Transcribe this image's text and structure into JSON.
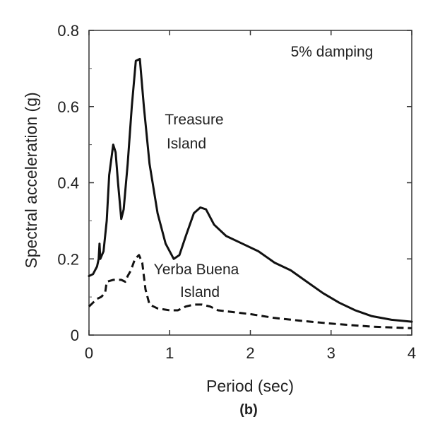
{
  "chart_data": {
    "type": "line",
    "title": "",
    "xlabel": "Period (sec)",
    "ylabel": "Spectral acceleration (g)",
    "xlim": [
      0,
      4
    ],
    "ylim": [
      0,
      0.8
    ],
    "x_ticks": [
      0,
      1,
      2,
      3,
      4
    ],
    "x_tick_labels": [
      "0",
      "1",
      "2",
      "3",
      "4"
    ],
    "y_ticks": [
      0,
      0.2,
      0.4,
      0.6,
      0.8
    ],
    "y_tick_labels": [
      "0",
      "0.2",
      "0.4",
      "0.6",
      "0.8"
    ],
    "grid": false,
    "annotations": {
      "damping": "5% damping",
      "caption": "(b)"
    },
    "series": [
      {
        "name": "Treasure Island",
        "label_lines": [
          "Treasure",
          "Island"
        ],
        "style": "solid",
        "color": "#111111",
        "points": [
          [
            0,
            0.155
          ],
          [
            0.05,
            0.16
          ],
          [
            0.1,
            0.18
          ],
          [
            0.12,
            0.2
          ],
          [
            0.13,
            0.24
          ],
          [
            0.14,
            0.2
          ],
          [
            0.18,
            0.22
          ],
          [
            0.22,
            0.3
          ],
          [
            0.25,
            0.42
          ],
          [
            0.3,
            0.5
          ],
          [
            0.33,
            0.48
          ],
          [
            0.36,
            0.4
          ],
          [
            0.4,
            0.305
          ],
          [
            0.43,
            0.33
          ],
          [
            0.48,
            0.45
          ],
          [
            0.53,
            0.6
          ],
          [
            0.58,
            0.72
          ],
          [
            0.63,
            0.725
          ],
          [
            0.68,
            0.6
          ],
          [
            0.75,
            0.45
          ],
          [
            0.85,
            0.32
          ],
          [
            0.95,
            0.24
          ],
          [
            1.05,
            0.2
          ],
          [
            1.12,
            0.21
          ],
          [
            1.2,
            0.26
          ],
          [
            1.3,
            0.32
          ],
          [
            1.38,
            0.335
          ],
          [
            1.45,
            0.33
          ],
          [
            1.55,
            0.29
          ],
          [
            1.7,
            0.26
          ],
          [
            1.9,
            0.24
          ],
          [
            2.1,
            0.22
          ],
          [
            2.3,
            0.19
          ],
          [
            2.5,
            0.17
          ],
          [
            2.7,
            0.14
          ],
          [
            2.9,
            0.11
          ],
          [
            3.1,
            0.085
          ],
          [
            3.3,
            0.065
          ],
          [
            3.5,
            0.05
          ],
          [
            3.75,
            0.04
          ],
          [
            4,
            0.035
          ]
        ]
      },
      {
        "name": "Yerba Buena Island",
        "label_lines": [
          "Yerba Buena",
          "Island"
        ],
        "style": "dashed",
        "color": "#111111",
        "points": [
          [
            0,
            0.075
          ],
          [
            0.05,
            0.085
          ],
          [
            0.1,
            0.095
          ],
          [
            0.15,
            0.1
          ],
          [
            0.2,
            0.11
          ],
          [
            0.22,
            0.14
          ],
          [
            0.3,
            0.145
          ],
          [
            0.4,
            0.145
          ],
          [
            0.45,
            0.14
          ],
          [
            0.48,
            0.155
          ],
          [
            0.52,
            0.17
          ],
          [
            0.57,
            0.2
          ],
          [
            0.62,
            0.21
          ],
          [
            0.66,
            0.19
          ],
          [
            0.7,
            0.12
          ],
          [
            0.75,
            0.08
          ],
          [
            0.85,
            0.07
          ],
          [
            1.0,
            0.065
          ],
          [
            1.1,
            0.065
          ],
          [
            1.2,
            0.075
          ],
          [
            1.3,
            0.08
          ],
          [
            1.4,
            0.08
          ],
          [
            1.5,
            0.075
          ],
          [
            1.6,
            0.065
          ],
          [
            1.8,
            0.06
          ],
          [
            2.0,
            0.055
          ],
          [
            2.3,
            0.045
          ],
          [
            2.6,
            0.038
          ],
          [
            3.0,
            0.03
          ],
          [
            3.5,
            0.022
          ],
          [
            4,
            0.018
          ]
        ]
      }
    ]
  }
}
